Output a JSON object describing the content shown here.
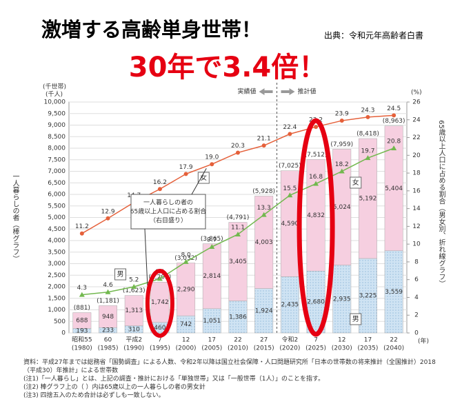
{
  "header": {
    "title": "激増する高齢単身世帯！",
    "source": "出典：令和元年高齢者白書",
    "headline": "30年で3.4倍！"
  },
  "chart_data": {
    "type": "bar",
    "stacked": true,
    "categories": [
      "昭和55",
      "60",
      "平成2",
      "7",
      "12",
      "17",
      "22",
      "27",
      "令和2",
      "7",
      "12",
      "17",
      "22"
    ],
    "category_years": [
      "(1980)",
      "(1985)",
      "(1990)",
      "(1995)",
      "(2000)",
      "(2005)",
      "(2010)",
      "(2015)",
      "(2020)",
      "(2025)",
      "(2030)",
      "(2035)",
      "(2040)"
    ],
    "x_unit": "(年)",
    "y_unit_labels": [
      "(千世帯)",
      "(千人)"
    ],
    "y_title": "一人暮らしの者（棒グラフ）",
    "y2_unit_label": "(%)",
    "y2_title": "65歳以上人口に占める割合（男女別、折れ線グラフ）",
    "ylim": [
      0,
      10000
    ],
    "yticks": [
      0,
      {
        "value": 500,
        "label": "500"
      },
      {
        "value": 1000,
        "label": "1,000"
      },
      {
        "value": 1500,
        "label": "1,500"
      },
      {
        "value": 2000,
        "label": "2,000"
      },
      {
        "value": 2500,
        "label": "2,500"
      },
      {
        "value": 3000,
        "label": "3,000"
      },
      {
        "value": 3500,
        "label": "3,500"
      },
      {
        "value": 4000,
        "label": "4,000"
      },
      {
        "value": 4500,
        "label": "4,500"
      },
      {
        "value": 5000,
        "label": "5,000"
      },
      {
        "value": 5500,
        "label": "5,500"
      },
      {
        "value": 6000,
        "label": "6,000"
      },
      {
        "value": 6500,
        "label": "6,500"
      },
      {
        "value": 7000,
        "label": "7,000"
      },
      {
        "value": 7500,
        "label": "7,500"
      },
      {
        "value": 8000,
        "label": "8,000"
      },
      {
        "value": 8500,
        "label": "8,500"
      },
      {
        "value": 9000,
        "label": "9,000"
      },
      {
        "value": 9500,
        "label": "9,500"
      },
      {
        "value": 10000,
        "label": "10,000"
      }
    ],
    "y2lim": [
      0,
      26
    ],
    "y2ticks": [
      0,
      2,
      4,
      6,
      8,
      10,
      12,
      14,
      16,
      18,
      20,
      22,
      24,
      26
    ],
    "series": [
      {
        "name": "男",
        "color": "#cfe3f3",
        "values": [
          193,
          233,
          310,
          460,
          742,
          1051,
          1386,
          1924,
          2435,
          2680,
          2935,
          3225,
          3559
        ],
        "value_labels": [
          "193",
          "233",
          "310",
          "460",
          "742",
          "1,051",
          "1,386",
          "1,924",
          "2,435",
          "2,680",
          "2,935",
          "3,225",
          "3,559"
        ]
      },
      {
        "name": "女",
        "color": "#f6cfe0",
        "values": [
          688,
          948,
          1313,
          1742,
          2290,
          2814,
          3405,
          4003,
          4590,
          4832,
          5024,
          5192,
          5404
        ],
        "value_labels": [
          "688",
          "948",
          "1,313",
          "1,742",
          "2,290",
          "2,814",
          "3,405",
          "4,003",
          "4,590",
          "4,832",
          "5,024",
          "5,192",
          "5,404"
        ]
      },
      {
        "name": "女",
        "type": "line",
        "axis": "y2",
        "color": "#e5603a",
        "values": [
          11.2,
          12.9,
          14.7,
          16.2,
          17.9,
          19.0,
          20.3,
          21.1,
          22.4,
          23.2,
          23.9,
          24.3,
          24.5
        ],
        "value_labels": [
          "11.2",
          "12.9",
          "14.7",
          "16.2",
          "17.9",
          "19.0",
          "20.3",
          "21.1",
          "22.4",
          "23.2",
          "23.9",
          "24.3",
          "24.5"
        ]
      },
      {
        "name": "男",
        "type": "line",
        "axis": "y2",
        "color": "#72b84e",
        "values": [
          4.3,
          4.6,
          5.2,
          6.1,
          8.0,
          9.7,
          11.1,
          13.3,
          15.5,
          16.8,
          18.2,
          19.7,
          20.8
        ],
        "value_labels": [
          "4.3",
          "4.6",
          "5.2",
          "6.1",
          "8.0",
          "9.7",
          "11.1",
          "13.3",
          "15.5",
          "16.8",
          "18.2",
          "19.7",
          "20.8"
        ]
      }
    ],
    "totals": {
      "values": [
        881,
        1181,
        1623,
        2202,
        3032,
        3865,
        4791,
        5928,
        7025,
        7512,
        7959,
        8418,
        8963
      ],
      "value_labels": [
        "(881)",
        "(1,181)",
        "(1,623)",
        "(2,202)",
        "(3,032)",
        "(3,865)",
        "(4,791)",
        "(5,928)",
        "(7,025)",
        "(7,512)",
        "(7,959)",
        "(8,418)",
        "(8,963)"
      ]
    },
    "phase_labels": [
      "実績値",
      "推計値"
    ],
    "annotation": [
      "一人暮らしの者の",
      "65歳以上人口に占める割合",
      "（右目盛り）"
    ],
    "notes": [
      "資料：平成27年までは総務省「国勢調査」による人数、令和2年以降は国立社会保障・人口問題研究所「日本の世帯数の将来推計（全国推計）2018（平成30）年推計」による世帯数",
      "(注1)「一人暮らし」とは、上記の調査・推計における「単独世帯」又は「一般世帯（1人）」のことを指す。",
      "(注2) 棒グラフ上の（ ）内は65歳以上の一人暮らしの者の男女計",
      "(注3) 四捨五入のため合計は必ずしも一致しない。"
    ]
  }
}
